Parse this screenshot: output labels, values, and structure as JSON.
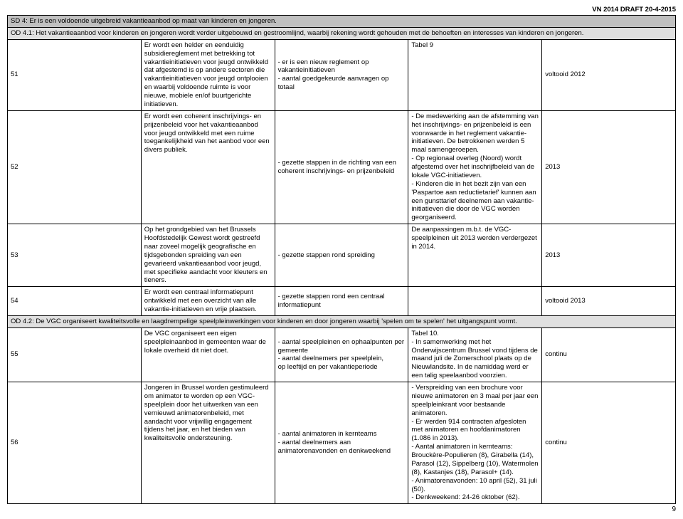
{
  "header": {
    "draft_label": "VN 2014 DRAFT 20-4-2015"
  },
  "sd4": {
    "title": "SD 4: Er is een voldoende uitgebreid vakantieaanbod op maat van kinderen en jongeren."
  },
  "od41": {
    "title": "OD 4.1: Het vakantieaanbod voor kinderen en jongeren wordt verder uitgebouwd en gestroomlijnd, waarbij rekening wordt gehouden met de behoeften en interesses van kinderen en jongeren."
  },
  "rows": {
    "r51": {
      "num": "51",
      "c2": "Er wordt een helder en eenduidig subsidiereglement met betrekking tot vakantieinitiatieven voor jeugd ontwikkeld dat afgestemd is op andere sectoren die vakantieinitiatieven voor jeugd ontplooien en waarbij voldoende ruimte is voor nieuwe, mobiele en/of buurtgerichte initiatieven.",
      "c3": "- er is een nieuw reglement op vakantieinitiatieven\n- aantal goedgekeurde aanvragen op totaal",
      "c4": "Tabel 9",
      "c5": "voltooid 2012"
    },
    "r52": {
      "num": "52",
      "c2": "Er wordt een coherent inschrijvings- en prijzenbeleid voor het vakantieaanbod voor jeugd ontwikkeld met een ruime toegankelijkheid van het aanbod voor een divers publiek.",
      "c3": "- gezette stappen in de richting van een coherent inschrijvings- en prijzenbeleid",
      "c4": "- De medewerking aan de afstemming van het inschrijvings- en prijzenbeleid is een voorwaarde in het reglement vakantie-initiatieven. De betrokkenen werden 5 maal samengeroepen.\n- Op regionaal overleg (Noord) wordt afgestemd over het inschrijfbeleid van de lokale VGC-initiatieven.\n- Kinderen die in het bezit zijn van een 'Paspartoe aan reductietarief' kunnen aan een gunsttarief deelnemen aan vakantie-initiatieven die door de VGC worden georganiseerd.",
      "c5": "2013"
    },
    "r53": {
      "num": "53",
      "c2": "Op het grondgebied van het Brussels Hoofdstedelijk Gewest wordt gestreefd naar zoveel mogelijk geografische en tijdsgebonden spreiding van een gevarieerd vakantieaanbod voor jeugd, met specifieke aandacht voor kleuters en tieners.",
      "c3": "- gezette stappen rond spreiding",
      "c4": "De aanpassingen m.b.t. de VGC-speelpleinen uit 2013 werden verdergezet in 2014.",
      "c5": "2013"
    },
    "r54": {
      "num": "54",
      "c2": "Er wordt een centraal informatiepunt ontwikkeld met een overzicht van alle vakantie-initiatieven en vrije plaatsen.",
      "c3": "- gezette stappen rond een centraal informatiepunt",
      "c4": "",
      "c5": "voltooid 2013"
    }
  },
  "od42": {
    "title": "OD 4.2: De VGC organiseert kwaliteitsvolle en laagdrempelige speelpleinwerkingen voor kinderen en door jongeren waarbij 'spelen om te spelen' het uitgangspunt vormt."
  },
  "rows2": {
    "r55": {
      "num": "55",
      "c2": "De VGC organiseert een eigen speelpleinaanbod in gemeenten waar de lokale overheid dit niet doet.",
      "c3": "- aantal speelpleinen en ophaalpunten per gemeente\n- aantal deelnemers per speelplein,\nop leeftijd en per vakantieperiode",
      "c4": "Tabel 10.\n- In samenwerking met het Onderwijscentrum Brussel vond tijdens de maand juli de Zomerschool plaats op de Nieuwlandsite. In de namiddag werd er een talig speelaanbod voorzien.",
      "c5": "continu"
    },
    "r56": {
      "num": "56",
      "c2": "Jongeren in Brussel worden gestimuleerd om animator te worden op een VGC-speelplein door het uitwerken van een vernieuwd animatorenbeleid, met aandacht voor vrijwillig engagement tijdens het jaar, en het bieden van kwaliteitsvolle ondersteuning.",
      "c3": "- aantal animatoren in kernteams\n- aantal deelnemers aan animatorenavonden en denkweekend",
      "c4": "- Verspreiding van een brochure voor nieuwe animatoren en 3 maal per jaar een speelpleinkrant voor bestaande animatoren.\n- Er werden  914 contracten afgesloten met animatoren en hoofdanimatoren (1.086 in 2013).\n- Aantal animatoren in kernteams: Brouckère-Populieren (8), Girabella (14), Parasol (12), Sippelberg (10), Watermolen (8), Kastanjes (18), Parasol+ (14).\n- Animatorenavonden: 10 april (52), 31 juli (50).\n- Denkweekend: 24-26 oktober (62).",
      "c5": "continu"
    }
  },
  "page_number": "9"
}
